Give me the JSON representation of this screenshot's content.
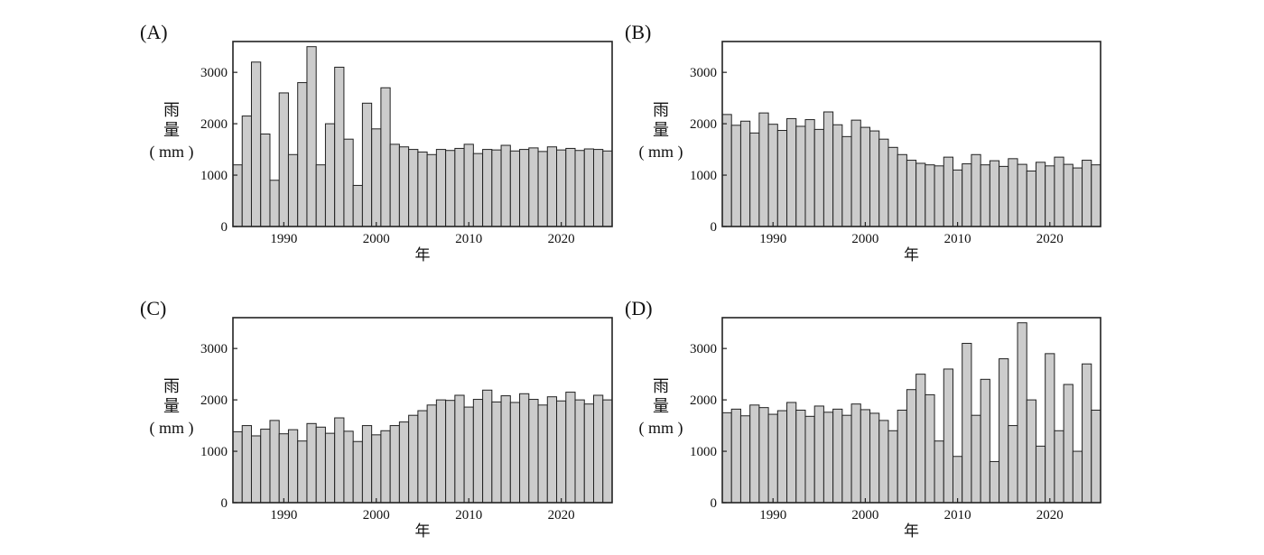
{
  "chart_data": [
    {
      "panel": "(A)",
      "type": "bar",
      "ylabel_lines": [
        "雨",
        "量",
        "( mm )"
      ],
      "xlabel": "年",
      "ylim": [
        0,
        3600
      ],
      "yticks": [
        0,
        1000,
        2000,
        3000
      ],
      "xticks": [
        1990,
        2000,
        2010,
        2020
      ],
      "x": [
        1985,
        1986,
        1987,
        1988,
        1989,
        1990,
        1991,
        1992,
        1993,
        1994,
        1995,
        1996,
        1997,
        1998,
        1999,
        2000,
        2001,
        2002,
        2003,
        2004,
        2005,
        2006,
        2007,
        2008,
        2009,
        2010,
        2011,
        2012,
        2013,
        2014,
        2015,
        2016,
        2017,
        2018,
        2019,
        2020,
        2021,
        2022,
        2023,
        2024,
        2025
      ],
      "values": [
        1200,
        2150,
        3200,
        1800,
        900,
        2600,
        1400,
        2800,
        3500,
        1200,
        2000,
        3100,
        1700,
        800,
        2400,
        1900,
        2700,
        1600,
        1550,
        1500,
        1450,
        1400,
        1500,
        1480,
        1520,
        1600,
        1420,
        1500,
        1490,
        1580,
        1470,
        1500,
        1530,
        1460,
        1550,
        1490,
        1520,
        1480,
        1510,
        1500,
        1470
      ]
    },
    {
      "panel": "(B)",
      "type": "bar",
      "ylabel_lines": [
        "雨",
        "量",
        "( mm )"
      ],
      "xlabel": "年",
      "ylim": [
        0,
        3600
      ],
      "yticks": [
        0,
        1000,
        2000,
        3000
      ],
      "xticks": [
        1990,
        2000,
        2010,
        2020
      ],
      "x": [
        1985,
        1986,
        1987,
        1988,
        1989,
        1990,
        1991,
        1992,
        1993,
        1994,
        1995,
        1996,
        1997,
        1998,
        1999,
        2000,
        2001,
        2002,
        2003,
        2004,
        2005,
        2006,
        2007,
        2008,
        2009,
        2010,
        2011,
        2012,
        2013,
        2014,
        2015,
        2016,
        2017,
        2018,
        2019,
        2020,
        2021,
        2022,
        2023,
        2024,
        2025
      ],
      "values": [
        2180,
        1970,
        2050,
        1820,
        2210,
        1990,
        1870,
        2100,
        1950,
        2080,
        1890,
        2230,
        1980,
        1750,
        2070,
        1930,
        1860,
        1700,
        1540,
        1400,
        1290,
        1230,
        1200,
        1180,
        1350,
        1100,
        1220,
        1400,
        1200,
        1280,
        1170,
        1320,
        1210,
        1080,
        1250,
        1180,
        1350,
        1210,
        1140,
        1290,
        1200
      ]
    },
    {
      "panel": "(C)",
      "type": "bar",
      "ylabel_lines": [
        "雨",
        "量",
        "( mm )"
      ],
      "xlabel": "年",
      "ylim": [
        0,
        3600
      ],
      "yticks": [
        0,
        1000,
        2000,
        3000
      ],
      "xticks": [
        1990,
        2000,
        2010,
        2020
      ],
      "x": [
        1985,
        1986,
        1987,
        1988,
        1989,
        1990,
        1991,
        1992,
        1993,
        1994,
        1995,
        1996,
        1997,
        1998,
        1999,
        2000,
        2001,
        2002,
        2003,
        2004,
        2005,
        2006,
        2007,
        2008,
        2009,
        2010,
        2011,
        2012,
        2013,
        2014,
        2015,
        2016,
        2017,
        2018,
        2019,
        2020,
        2021,
        2022,
        2023,
        2024,
        2025
      ],
      "values": [
        1380,
        1500,
        1300,
        1430,
        1600,
        1340,
        1420,
        1200,
        1540,
        1470,
        1350,
        1650,
        1390,
        1190,
        1500,
        1320,
        1400,
        1500,
        1570,
        1700,
        1790,
        1900,
        2000,
        1990,
        2090,
        1860,
        2010,
        2190,
        1960,
        2080,
        1950,
        2120,
        2010,
        1900,
        2060,
        1980,
        2150,
        2000,
        1920,
        2090,
        2000
      ]
    },
    {
      "panel": "(D)",
      "type": "bar",
      "ylabel_lines": [
        "雨",
        "量",
        "( mm )"
      ],
      "xlabel": "年",
      "ylim": [
        0,
        3600
      ],
      "yticks": [
        0,
        1000,
        2000,
        3000
      ],
      "xticks": [
        1990,
        2000,
        2010,
        2020
      ],
      "x": [
        1985,
        1986,
        1987,
        1988,
        1989,
        1990,
        1991,
        1992,
        1993,
        1994,
        1995,
        1996,
        1997,
        1998,
        1999,
        2000,
        2001,
        2002,
        2003,
        2004,
        2005,
        2006,
        2007,
        2008,
        2009,
        2010,
        2011,
        2012,
        2013,
        2014,
        2015,
        2016,
        2017,
        2018,
        2019,
        2020,
        2021,
        2022,
        2023,
        2024,
        2025
      ],
      "values": [
        1750,
        1820,
        1690,
        1900,
        1850,
        1720,
        1790,
        1950,
        1800,
        1680,
        1880,
        1760,
        1820,
        1700,
        1920,
        1810,
        1740,
        1600,
        1400,
        1800,
        2200,
        2500,
        2100,
        1200,
        2600,
        900,
        3100,
        1700,
        2400,
        800,
        2800,
        1500,
        3500,
        2000,
        1100,
        2900,
        1400,
        2300,
        1000,
        2700,
        1800
      ]
    }
  ]
}
